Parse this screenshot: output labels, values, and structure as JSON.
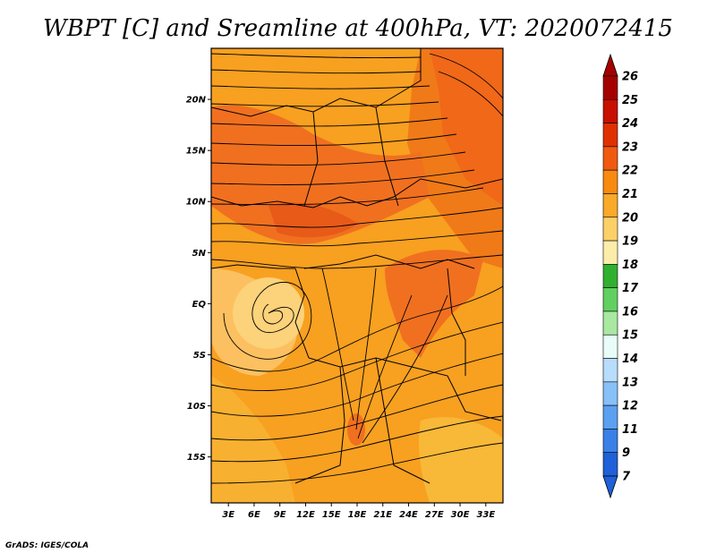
{
  "title": "WBPT [C] and Sreamline at 400hPa, VT: 2020072415",
  "credit": "GrADS: IGES/COLA",
  "map": {
    "lat_ticks": [
      "20N",
      "15N",
      "10N",
      "5N",
      "EQ",
      "5S",
      "10S",
      "15S"
    ],
    "lon_ticks": [
      "3E",
      "6E",
      "9E",
      "12E",
      "15E",
      "18E",
      "21E",
      "24E",
      "27E",
      "30E",
      "33E"
    ],
    "lon_range": [
      1,
      35
    ],
    "lat_range": [
      -19.5,
      25
    ]
  },
  "colorbar": {
    "levels": [
      "26",
      "25",
      "24",
      "23",
      "22",
      "21",
      "20",
      "19",
      "18",
      "17",
      "16",
      "15",
      "14",
      "13",
      "12",
      "11",
      "9",
      "7"
    ],
    "colors": [
      "#a50000",
      "#c81000",
      "#e03000",
      "#f05a10",
      "#f88a10",
      "#f8aa28",
      "#fcd068",
      "#fcecaa",
      "#30b030",
      "#60d060",
      "#a8e8a0",
      "#e8fcf8",
      "#b8dcfc",
      "#88c0f8",
      "#5ca0f0",
      "#3a80e8",
      "#2060d8"
    ]
  },
  "chart_data": {
    "type": "heatmap",
    "title": "WBPT [C] and Sreamline at 400hPa, VT: 2020072415",
    "xlabel": "",
    "ylabel": "",
    "x_ticks": [
      "3E",
      "6E",
      "9E",
      "12E",
      "15E",
      "18E",
      "21E",
      "24E",
      "27E",
      "30E",
      "33E"
    ],
    "y_ticks": [
      "20N",
      "15N",
      "10N",
      "5N",
      "EQ",
      "5S",
      "10S",
      "15S"
    ],
    "xlim": [
      1,
      35
    ],
    "ylim": [
      -19.5,
      25
    ],
    "colorbar_levels": [
      7,
      9,
      11,
      12,
      13,
      14,
      15,
      16,
      17,
      18,
      19,
      20,
      21,
      22,
      23,
      24,
      25,
      26
    ]
  }
}
